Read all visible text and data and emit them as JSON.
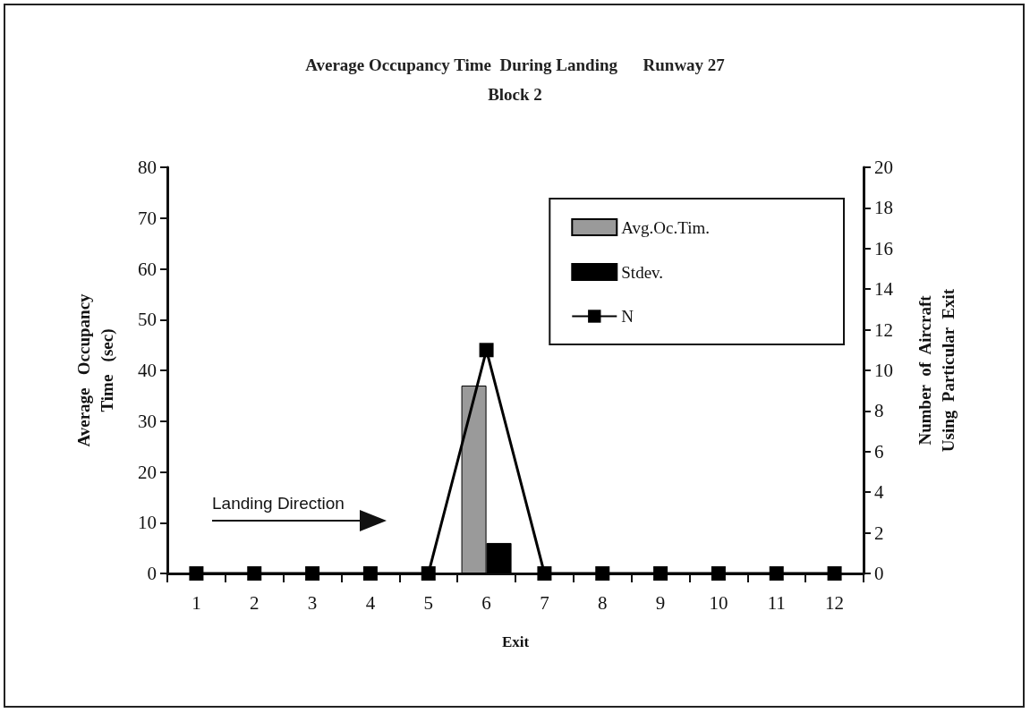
{
  "chart_data": {
    "type": "bar",
    "title": "Average Occupancy Time  During Landing      Runway 27",
    "subtitle": "Block 2",
    "xlabel": "Exit",
    "ylabel": "Average   Occupancy\nTime   (sec)",
    "y2label": "Number  of  Aircraft\nUsing  Particular  Exit",
    "categories": [
      "1",
      "2",
      "3",
      "4",
      "5",
      "6",
      "7",
      "8",
      "9",
      "10",
      "11",
      "12"
    ],
    "series": [
      {
        "name": "Avg.Oc.Tim.",
        "color": "#9a9a9a",
        "values": [
          null,
          null,
          null,
          null,
          null,
          37,
          null,
          null,
          null,
          null,
          null,
          null
        ]
      },
      {
        "name": "Stdev.",
        "color": "#000000",
        "values": [
          null,
          null,
          null,
          null,
          null,
          6,
          null,
          null,
          null,
          null,
          null,
          null
        ]
      },
      {
        "name": "N",
        "type": "line",
        "axis": "y2",
        "color": "#000000",
        "values": [
          0,
          0,
          0,
          0,
          0,
          11,
          0,
          0,
          0,
          0,
          0,
          0
        ]
      }
    ],
    "ylim": [
      0,
      80
    ],
    "yticks": [
      0,
      10,
      20,
      30,
      40,
      50,
      60,
      70,
      80
    ],
    "y2lim": [
      0,
      20
    ],
    "y2ticks": [
      0,
      2,
      4,
      6,
      8,
      10,
      12,
      14,
      16,
      18,
      20
    ],
    "annotations": [
      "Landing Direction"
    ],
    "marker": "square",
    "line_style": "solid",
    "grid": false,
    "legend": "top right"
  }
}
